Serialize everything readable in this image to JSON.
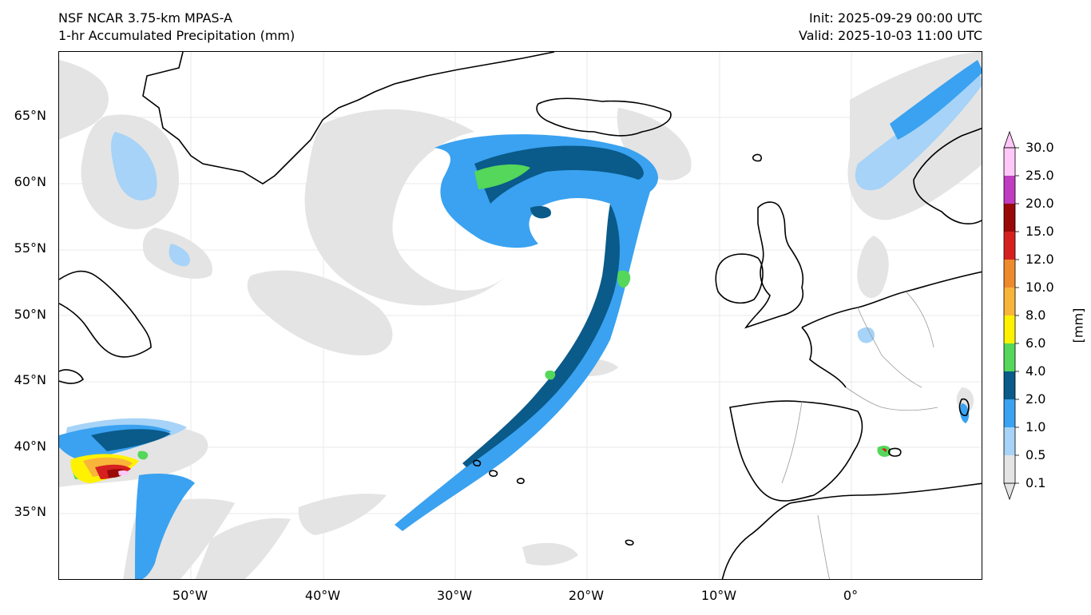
{
  "header": {
    "model": "NSF NCAR 3.75-km MPAS-A",
    "field": "1-hr Accumulated Precipitation (mm)",
    "init": "Init: 2025-09-29 00:00 UTC",
    "valid": "Valid: 2025-10-03 11:00 UTC"
  },
  "map": {
    "latitude_labels": [
      "65°N",
      "60°N",
      "55°N",
      "50°N",
      "45°N",
      "40°N",
      "35°N"
    ],
    "longitude_labels": [
      "50°W",
      "40°W",
      "30°W",
      "20°W",
      "10°W",
      "0°"
    ],
    "coastline_color": "#000000",
    "border_color": "#999999",
    "gridline_color": "#e8e8e8"
  },
  "colorbar": {
    "unit_label": "[mm]",
    "levels": [
      "0.1",
      "0.5",
      "1.0",
      "2.0",
      "4.0",
      "6.0",
      "8.0",
      "10.0",
      "12.0",
      "15.0",
      "20.0",
      "25.0",
      "30.0"
    ],
    "colors": [
      "#e4e4e4",
      "#a6d3f7",
      "#3aa2f0",
      "#0a5a8a",
      "#54d75a",
      "#fff200",
      "#f9b43a",
      "#ee8a2c",
      "#d62020",
      "#9a0808",
      "#c03cc0",
      "#ffc8f8"
    ]
  }
}
